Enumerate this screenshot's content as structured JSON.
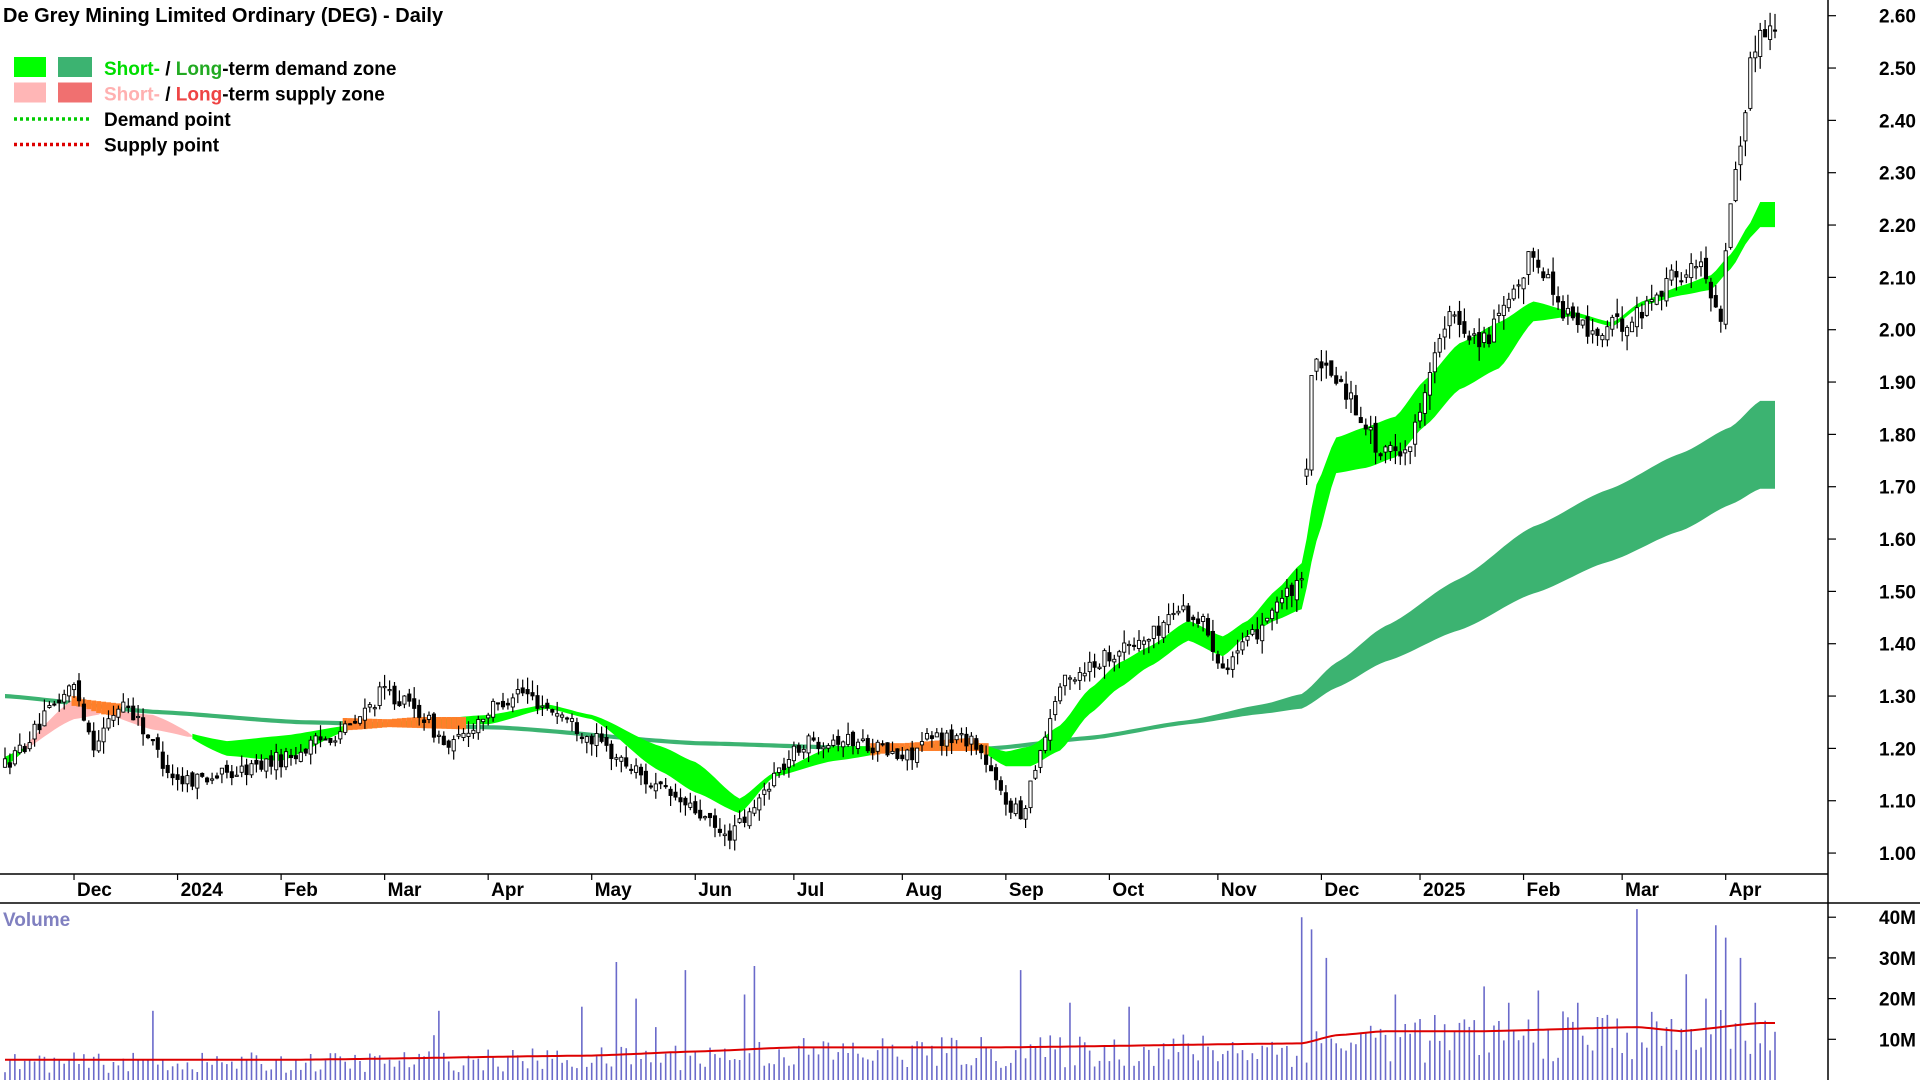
{
  "chart_data": {
    "type": "candlestick",
    "title": "De Grey Mining Limited Ordinary (DEG) - Daily",
    "legend": [
      {
        "swatches": [
          "#00ff00",
          "#3cb371"
        ],
        "parts": [
          {
            "text": "Short-",
            "color": "#00dd00"
          },
          {
            "text": " / ",
            "color": "#000000"
          },
          {
            "text": "Long",
            "color": "#22aa22"
          },
          {
            "text": "-term demand zone",
            "color": "#000000"
          }
        ]
      },
      {
        "swatches": [
          "#ffb6b6",
          "#f07070"
        ],
        "parts": [
          {
            "text": "Short-",
            "color": "#ffb0b0"
          },
          {
            "text": " / ",
            "color": "#000000"
          },
          {
            "text": "Long",
            "color": "#ee4444"
          },
          {
            "text": "-term supply zone",
            "color": "#000000"
          }
        ]
      },
      {
        "line_color": "#00cc00",
        "parts": [
          {
            "text": "Demand point",
            "color": "#000000"
          }
        ]
      },
      {
        "line_color": "#dd0000",
        "parts": [
          {
            "text": "Supply point",
            "color": "#000000"
          }
        ]
      }
    ],
    "price_axis": {
      "ticks": [
        "1.00",
        "1.10",
        "1.20",
        "1.30",
        "1.40",
        "1.50",
        "1.60",
        "1.70",
        "1.80",
        "1.90",
        "2.00",
        "2.10",
        "2.20",
        "2.30",
        "2.40",
        "2.50",
        "2.60"
      ],
      "ylim": [
        0.96,
        2.63
      ]
    },
    "months": [
      "Dec",
      "2024",
      "Feb",
      "Mar",
      "Apr",
      "May",
      "Jun",
      "Jul",
      "Aug",
      "Sep",
      "Oct",
      "Nov",
      "Dec",
      "2025",
      "Feb",
      "Mar",
      "Apr"
    ],
    "month_index": [
      14,
      35,
      56,
      77,
      98,
      119,
      140,
      160,
      182,
      203,
      224,
      246,
      267,
      287,
      308,
      328,
      349
    ],
    "num_days": 360,
    "price_anchors": [
      [
        0,
        1.17
      ],
      [
        14,
        1.32
      ],
      [
        18,
        1.21
      ],
      [
        24,
        1.29
      ],
      [
        35,
        1.14
      ],
      [
        45,
        1.15
      ],
      [
        56,
        1.18
      ],
      [
        70,
        1.24
      ],
      [
        77,
        1.31
      ],
      [
        84,
        1.27
      ],
      [
        90,
        1.2
      ],
      [
        98,
        1.27
      ],
      [
        104,
        1.31
      ],
      [
        112,
        1.27
      ],
      [
        119,
        1.22
      ],
      [
        126,
        1.17
      ],
      [
        133,
        1.12
      ],
      [
        140,
        1.08
      ],
      [
        146,
        1.03
      ],
      [
        151,
        1.07
      ],
      [
        156,
        1.15
      ],
      [
        162,
        1.21
      ],
      [
        168,
        1.22
      ],
      [
        175,
        1.21
      ],
      [
        182,
        1.18
      ],
      [
        188,
        1.22
      ],
      [
        196,
        1.22
      ],
      [
        203,
        1.1
      ],
      [
        206,
        1.07
      ],
      [
        210,
        1.2
      ],
      [
        214,
        1.32
      ],
      [
        220,
        1.36
      ],
      [
        226,
        1.39
      ],
      [
        232,
        1.41
      ],
      [
        238,
        1.47
      ],
      [
        243,
        1.44
      ],
      [
        247,
        1.36
      ],
      [
        252,
        1.4
      ],
      [
        258,
        1.48
      ],
      [
        263,
        1.51
      ],
      [
        265,
        1.93
      ],
      [
        270,
        1.91
      ],
      [
        275,
        1.84
      ],
      [
        279,
        1.76
      ],
      [
        285,
        1.78
      ],
      [
        289,
        1.93
      ],
      [
        293,
        2.02
      ],
      [
        300,
        1.98
      ],
      [
        306,
        2.06
      ],
      [
        310,
        2.15
      ],
      [
        316,
        2.04
      ],
      [
        322,
        1.99
      ],
      [
        330,
        2.02
      ],
      [
        338,
        2.1
      ],
      [
        344,
        2.12
      ],
      [
        348,
        2.03
      ],
      [
        350,
        2.25
      ],
      [
        352,
        2.36
      ],
      [
        354,
        2.5
      ],
      [
        356,
        2.58
      ]
    ],
    "short_zone_anchors": [
      [
        0,
        1.17,
        1.18
      ],
      [
        14,
        1.29,
        1.26
      ],
      [
        20,
        1.27,
        1.27
      ],
      [
        30,
        1.26,
        1.24
      ],
      [
        45,
        1.19,
        1.21
      ],
      [
        56,
        1.18,
        1.22
      ],
      [
        70,
        1.24,
        1.24
      ],
      [
        84,
        1.25,
        1.25
      ],
      [
        98,
        1.25,
        1.26
      ],
      [
        110,
        1.28,
        1.28
      ],
      [
        119,
        1.26,
        1.26
      ],
      [
        133,
        1.16,
        1.2
      ],
      [
        140,
        1.12,
        1.17
      ],
      [
        149,
        1.08,
        1.1
      ],
      [
        156,
        1.15,
        1.15
      ],
      [
        168,
        1.18,
        1.2
      ],
      [
        182,
        1.2,
        1.2
      ],
      [
        196,
        1.21,
        1.21
      ],
      [
        203,
        1.17,
        1.19
      ],
      [
        208,
        1.17,
        1.2
      ],
      [
        214,
        1.2,
        1.24
      ],
      [
        220,
        1.27,
        1.31
      ],
      [
        226,
        1.32,
        1.36
      ],
      [
        232,
        1.36,
        1.39
      ],
      [
        240,
        1.41,
        1.44
      ],
      [
        247,
        1.38,
        1.41
      ],
      [
        252,
        1.42,
        1.44
      ],
      [
        258,
        1.45,
        1.5
      ],
      [
        263,
        1.47,
        1.55
      ],
      [
        266,
        1.6,
        1.7
      ],
      [
        270,
        1.73,
        1.79
      ],
      [
        276,
        1.74,
        1.81
      ],
      [
        282,
        1.76,
        1.83
      ],
      [
        288,
        1.82,
        1.9
      ],
      [
        295,
        1.89,
        1.97
      ],
      [
        303,
        1.93,
        2.01
      ],
      [
        310,
        2.02,
        2.05
      ],
      [
        318,
        2.03,
        2.03
      ],
      [
        326,
        2.01,
        2.01
      ],
      [
        332,
        2.05,
        2.05
      ],
      [
        340,
        2.07,
        2.08
      ],
      [
        346,
        2.08,
        2.1
      ],
      [
        350,
        2.12,
        2.14
      ],
      [
        354,
        2.18,
        2.2
      ],
      [
        356,
        2.2,
        2.24
      ]
    ],
    "long_zone_anchors": [
      [
        0,
        1.3,
        1.3
      ],
      [
        30,
        1.27,
        1.27
      ],
      [
        60,
        1.25,
        1.25
      ],
      [
        100,
        1.24,
        1.24
      ],
      [
        140,
        1.21,
        1.21
      ],
      [
        175,
        1.2,
        1.2
      ],
      [
        200,
        1.2,
        1.2
      ],
      [
        220,
        1.22,
        1.22
      ],
      [
        240,
        1.25,
        1.25
      ],
      [
        255,
        1.27,
        1.28
      ],
      [
        263,
        1.28,
        1.3
      ],
      [
        270,
        1.32,
        1.36
      ],
      [
        280,
        1.37,
        1.43
      ],
      [
        295,
        1.43,
        1.52
      ],
      [
        310,
        1.5,
        1.62
      ],
      [
        325,
        1.56,
        1.69
      ],
      [
        340,
        1.62,
        1.76
      ],
      [
        350,
        1.67,
        1.81
      ],
      [
        356,
        1.7,
        1.86
      ]
    ],
    "volume_axis": {
      "ticks": [
        "10M",
        "20M",
        "30M",
        "40M"
      ],
      "ylim": [
        0,
        43
      ]
    },
    "volume_label": "Volume",
    "volume_spikes": [
      [
        30,
        17
      ],
      [
        87,
        11
      ],
      [
        88,
        17
      ],
      [
        117,
        18
      ],
      [
        124,
        29
      ],
      [
        128,
        20
      ],
      [
        132,
        13
      ],
      [
        138,
        27
      ],
      [
        150,
        21
      ],
      [
        152,
        28
      ],
      [
        206,
        27
      ],
      [
        216,
        19
      ],
      [
        228,
        18
      ],
      [
        263,
        40
      ],
      [
        265,
        37
      ],
      [
        268,
        30
      ],
      [
        282,
        21
      ],
      [
        287,
        15
      ],
      [
        300,
        23
      ],
      [
        305,
        19
      ],
      [
        311,
        22
      ],
      [
        319,
        19
      ],
      [
        325,
        16
      ],
      [
        331,
        42
      ],
      [
        338,
        15
      ],
      [
        341,
        26
      ],
      [
        345,
        20
      ],
      [
        347,
        38
      ],
      [
        349,
        35
      ],
      [
        352,
        30
      ],
      [
        355,
        19
      ]
    ],
    "volume_avg_anchors": [
      [
        0,
        5
      ],
      [
        60,
        5
      ],
      [
        119,
        6
      ],
      [
        140,
        7
      ],
      [
        160,
        8
      ],
      [
        200,
        8
      ],
      [
        263,
        9
      ],
      [
        270,
        11
      ],
      [
        280,
        12
      ],
      [
        300,
        12
      ],
      [
        331,
        13
      ],
      [
        340,
        12
      ],
      [
        356,
        14
      ]
    ]
  }
}
